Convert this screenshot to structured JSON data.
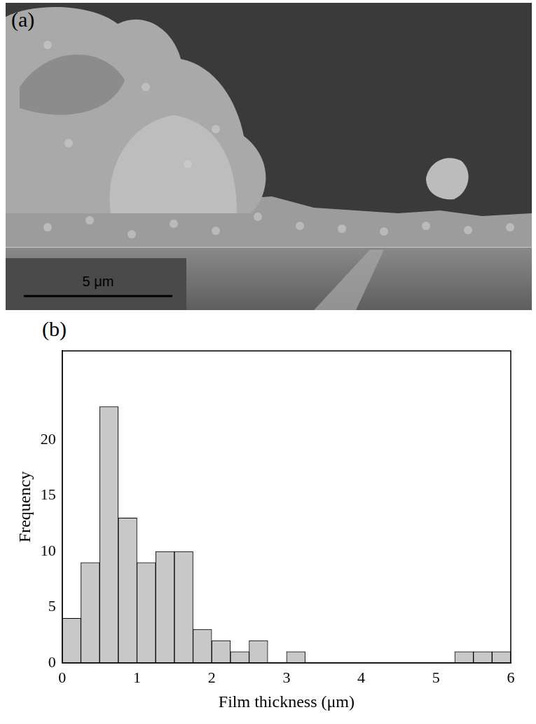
{
  "image": {
    "label": "(a)",
    "scale_bar_label": "5 μm"
  },
  "chart_data": {
    "type": "histogram",
    "label": "(b)",
    "x_label": "Film thickness (μm)",
    "y_label": "Frequency",
    "bins": [
      0,
      0.25,
      0.5,
      0.75,
      1,
      1.25,
      1.5,
      1.75,
      2,
      2.25,
      2.5,
      2.75,
      3,
      3.25,
      3.5,
      3.75,
      4,
      4.25,
      4.5,
      4.75,
      5,
      5.25,
      5.5,
      5.75,
      6
    ],
    "values": [
      4,
      9,
      23,
      13,
      9,
      10,
      10,
      3,
      2,
      1,
      2,
      0,
      1,
      0,
      0,
      0,
      0,
      0,
      0,
      0,
      0,
      1,
      1,
      1
    ],
    "color": "#c8c8c8",
    "xlim": [
      0,
      6
    ],
    "xticks": [
      0,
      1,
      2,
      3,
      4,
      5,
      6
    ],
    "ylim": [
      0,
      28
    ],
    "yticks": [
      0,
      5,
      10,
      15,
      20
    ],
    "grid": false
  }
}
